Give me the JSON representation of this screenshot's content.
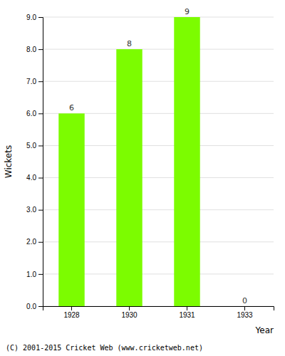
{
  "chart_data": {
    "type": "bar",
    "categories": [
      "1928",
      "1930",
      "1931",
      "1933"
    ],
    "values": [
      6,
      8,
      9,
      0
    ],
    "color": "#7CFC00",
    "x_label": "Year",
    "y_label": "Wickets",
    "ylim": [
      0.0,
      9.0
    ],
    "yticks": [
      {
        "value": 0.0,
        "label": "0.0"
      },
      {
        "value": 1.0,
        "label": "1.0"
      },
      {
        "value": 2.0,
        "label": "2.0"
      },
      {
        "value": 3.0,
        "label": "3.0"
      },
      {
        "value": 4.0,
        "label": "4.0"
      },
      {
        "value": 5.0,
        "label": "5.0"
      },
      {
        "value": 6.0,
        "label": "6.0"
      },
      {
        "value": 7.0,
        "label": "7.0"
      },
      {
        "value": 8.0,
        "label": "8.0"
      },
      {
        "value": 9.0,
        "label": "9.0"
      }
    ],
    "grid": true,
    "data_labels": true,
    "annotations": [
      "(C) 2001-2015 Cricket Web (www.cricketweb.net)"
    ]
  }
}
